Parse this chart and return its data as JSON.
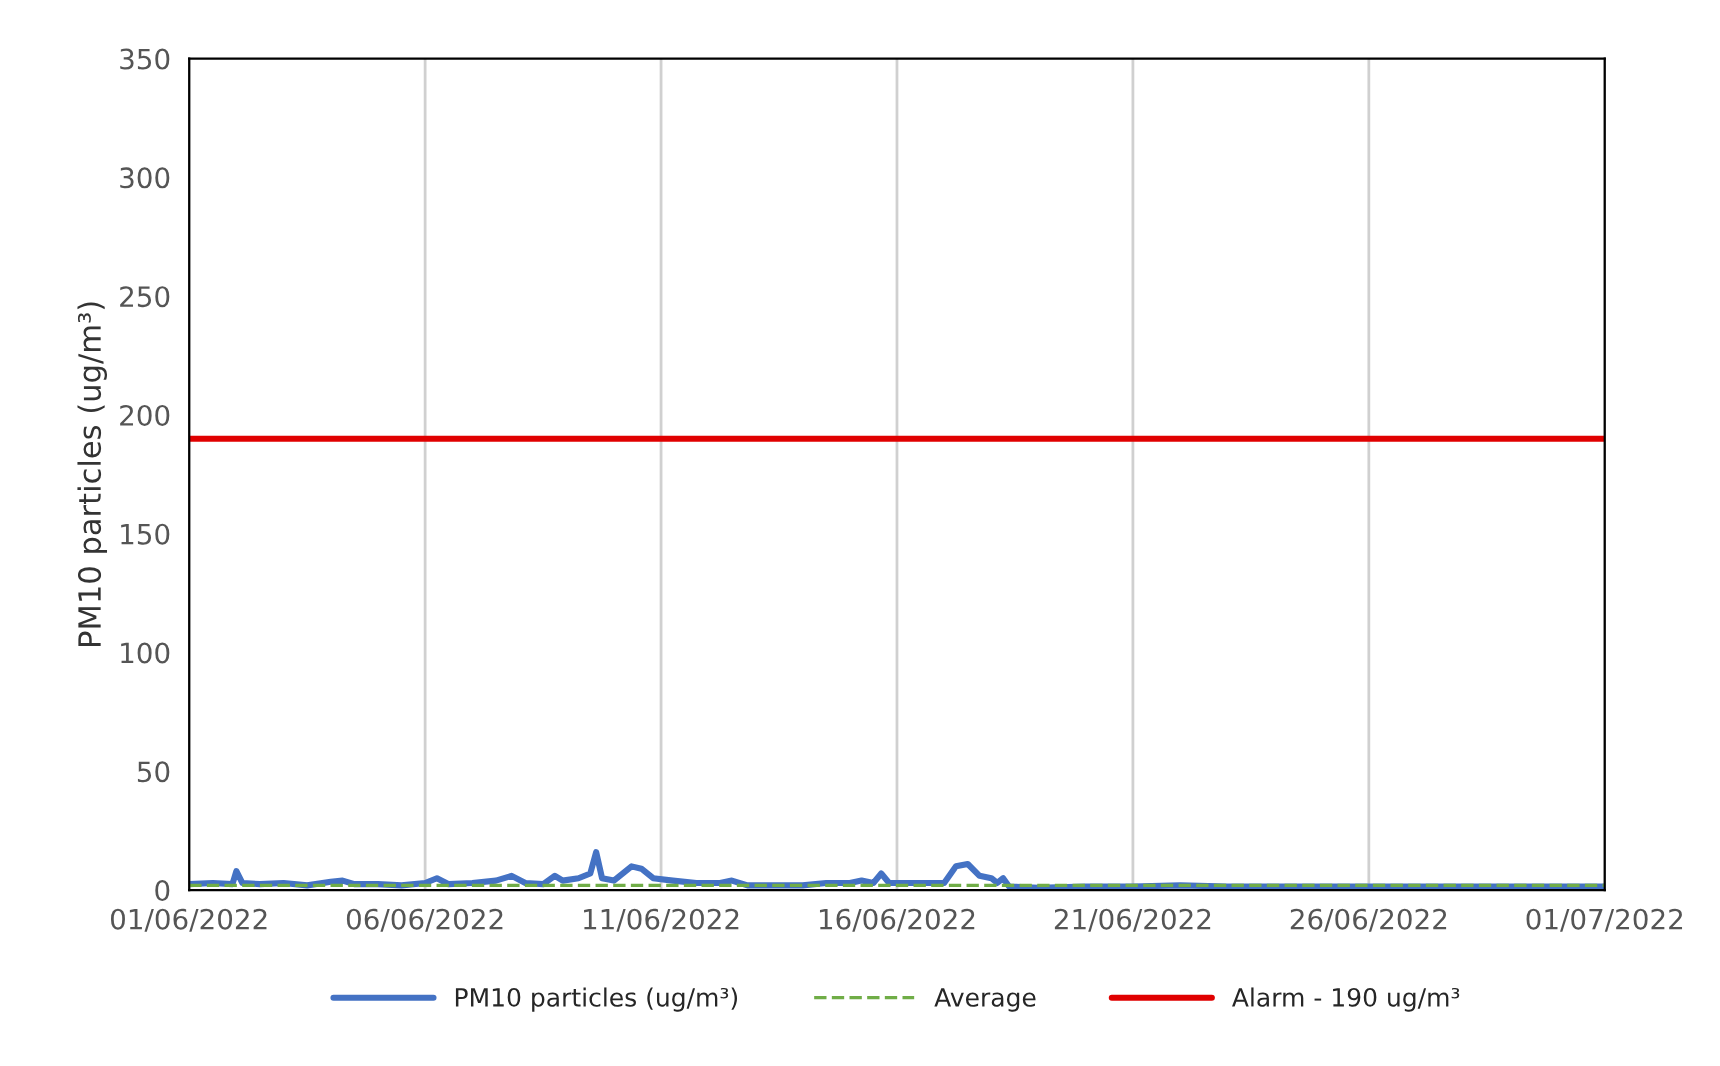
{
  "chart_data": {
    "type": "line",
    "ylabel": "PM10 particles (ug/m³)",
    "x": [
      "2022-06-01T00:00",
      "2022-06-01T12:00",
      "2022-06-01T22:00",
      "2022-06-02T00:00",
      "2022-06-02T03:00",
      "2022-06-02T12:00",
      "2022-06-03T00:00",
      "2022-06-03T12:00",
      "2022-06-04T00:00",
      "2022-06-04T06:00",
      "2022-06-04T12:00",
      "2022-06-05T00:00",
      "2022-06-05T12:00",
      "2022-06-06T00:00",
      "2022-06-06T06:00",
      "2022-06-06T12:00",
      "2022-06-07T00:00",
      "2022-06-07T12:00",
      "2022-06-07T20:00",
      "2022-06-08T03:00",
      "2022-06-08T12:00",
      "2022-06-08T18:00",
      "2022-06-08T22:00",
      "2022-06-09T06:00",
      "2022-06-09T12:00",
      "2022-06-09T15:00",
      "2022-06-09T18:00",
      "2022-06-10T00:00",
      "2022-06-10T09:00",
      "2022-06-10T14:00",
      "2022-06-10T20:00",
      "2022-06-11T06:00",
      "2022-06-11T18:00",
      "2022-06-12T06:00",
      "2022-06-12T12:00",
      "2022-06-12T20:00",
      "2022-06-13T12:00",
      "2022-06-14T00:00",
      "2022-06-14T12:00",
      "2022-06-15T00:00",
      "2022-06-15T06:00",
      "2022-06-15T12:00",
      "2022-06-15T16:00",
      "2022-06-15T20:00",
      "2022-06-16T06:00",
      "2022-06-16T18:00",
      "2022-06-17T00:00",
      "2022-06-17T06:00",
      "2022-06-17T12:00",
      "2022-06-17T18:00",
      "2022-06-18T00:00",
      "2022-06-18T03:00",
      "2022-06-18T06:00",
      "2022-06-18T09:00",
      "2022-06-19T00:00",
      "2022-06-20T00:00",
      "2022-06-21T00:00",
      "2022-06-22T00:00",
      "2022-06-23T00:00",
      "2022-06-24T00:00",
      "2022-06-25T00:00",
      "2022-06-26T00:00",
      "2022-06-27T00:00",
      "2022-06-28T00:00",
      "2022-06-29T00:00",
      "2022-06-30T00:00",
      "2022-07-01T00:00"
    ],
    "series": [
      {
        "name": "PM10 particles (ug/m³)",
        "color": "#4472c4",
        "values": [
          2.5,
          3,
          2.5,
          8,
          3,
          2.5,
          3,
          2,
          3.5,
          4,
          2.5,
          2.5,
          2,
          3,
          5,
          2.5,
          3,
          4,
          6,
          3,
          2.5,
          6,
          4,
          5,
          7,
          16,
          5,
          4,
          10,
          9,
          5,
          4,
          3,
          3,
          4,
          2,
          2,
          2,
          3,
          3,
          4,
          3,
          7,
          3,
          3,
          3,
          3,
          10,
          11,
          6,
          5,
          3,
          5,
          1.5,
          1,
          1.5,
          1.5,
          2,
          1.5,
          1.5,
          1.5,
          1.5,
          1.5,
          1.5,
          1.5,
          1.5,
          1.5
        ]
      }
    ],
    "ref_lines": [
      {
        "axis": "y",
        "value": 2,
        "label": "Average",
        "color": "#70ad47",
        "line_style": "dashed"
      },
      {
        "axis": "y",
        "value": 190,
        "label": "Alarm - 190 ug/m³",
        "color": "#e00000",
        "line_style": "solid"
      }
    ],
    "xlim": [
      "2022-06-01",
      "2022-07-01"
    ],
    "xticks": [
      {
        "value": "2022-06-01",
        "label": "01/06/2022"
      },
      {
        "value": "2022-06-06",
        "label": "06/06/2022"
      },
      {
        "value": "2022-06-11",
        "label": "11/06/2022"
      },
      {
        "value": "2022-06-16",
        "label": "16/06/2022"
      },
      {
        "value": "2022-06-21",
        "label": "21/06/2022"
      },
      {
        "value": "2022-06-26",
        "label": "26/06/2022"
      },
      {
        "value": "2022-07-01",
        "label": "01/07/2022"
      }
    ],
    "ylim": [
      0,
      350
    ],
    "yticks": [
      0,
      50,
      100,
      150,
      200,
      250,
      300,
      350
    ],
    "grid": "x",
    "legend": "bottom",
    "marker": "none",
    "line_style": "solid"
  }
}
